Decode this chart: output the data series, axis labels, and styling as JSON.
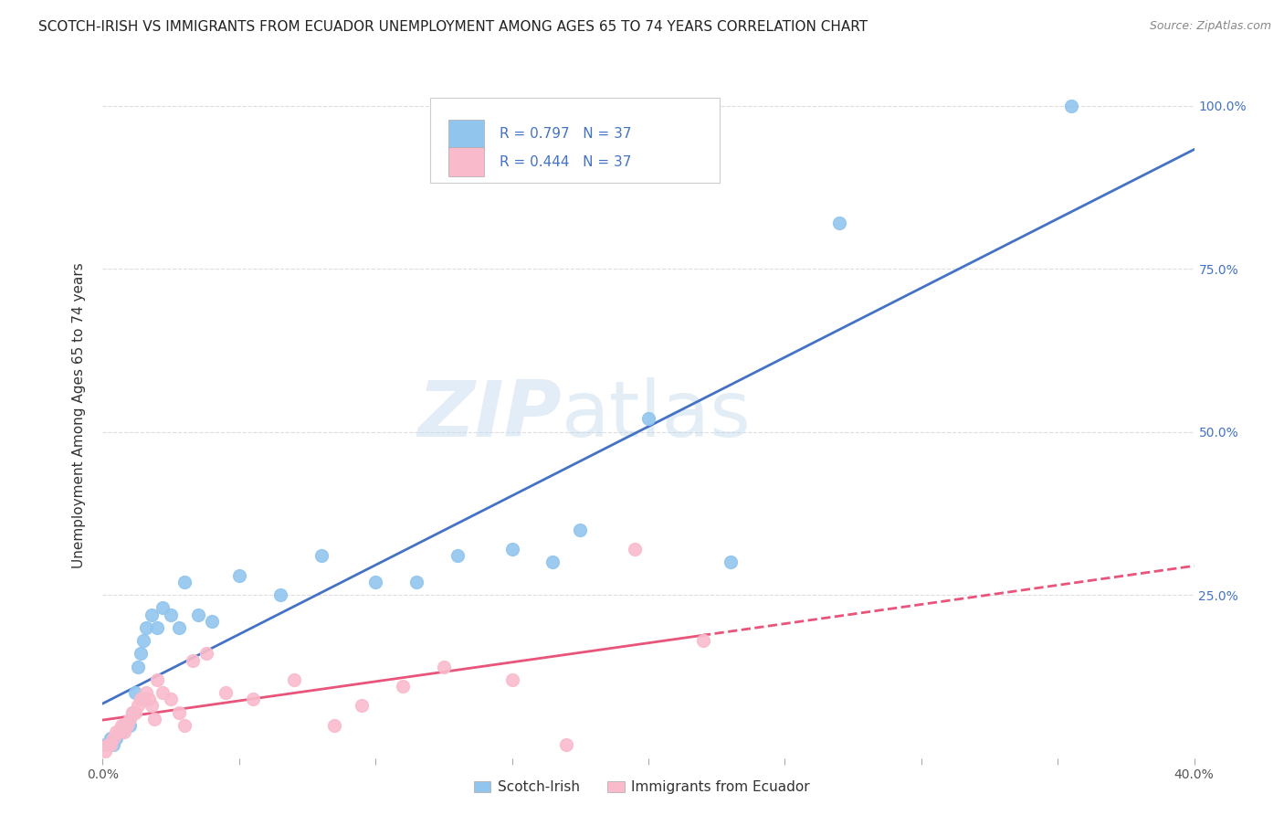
{
  "title": "SCOTCH-IRISH VS IMMIGRANTS FROM ECUADOR UNEMPLOYMENT AMONG AGES 65 TO 74 YEARS CORRELATION CHART",
  "source": "Source: ZipAtlas.com",
  "ylabel": "Unemployment Among Ages 65 to 74 years",
  "xlim": [
    0.0,
    0.4
  ],
  "ylim": [
    0.0,
    1.05
  ],
  "xtick_vals": [
    0.0,
    0.05,
    0.1,
    0.15,
    0.2,
    0.25,
    0.3,
    0.35,
    0.4
  ],
  "xticklabels": [
    "0.0%",
    "",
    "",
    "",
    "",
    "",
    "",
    "",
    "40.0%"
  ],
  "ytick_vals": [
    0.0,
    0.25,
    0.5,
    0.75,
    1.0
  ],
  "yticklabels": [
    "",
    "25.0%",
    "50.0%",
    "75.0%",
    "100.0%"
  ],
  "scotch_irish_R": 0.797,
  "scotch_irish_N": 37,
  "ecuador_R": 0.444,
  "ecuador_N": 37,
  "scotch_irish_color": "#92C5EE",
  "ecuador_color": "#F9BBCC",
  "scotch_irish_line_color": "#4472C4",
  "ecuador_line_color": "#E8547A",
  "scotch_irish_x": [
    0.001,
    0.002,
    0.003,
    0.004,
    0.005,
    0.006,
    0.007,
    0.008,
    0.009,
    0.01,
    0.011,
    0.012,
    0.013,
    0.014,
    0.015,
    0.016,
    0.018,
    0.02,
    0.022,
    0.025,
    0.028,
    0.03,
    0.035,
    0.04,
    0.05,
    0.065,
    0.08,
    0.1,
    0.115,
    0.13,
    0.15,
    0.165,
    0.175,
    0.2,
    0.23,
    0.27,
    0.355
  ],
  "scotch_irish_y": [
    0.02,
    0.02,
    0.03,
    0.02,
    0.03,
    0.04,
    0.04,
    0.05,
    0.05,
    0.05,
    0.07,
    0.1,
    0.14,
    0.16,
    0.18,
    0.2,
    0.22,
    0.2,
    0.23,
    0.22,
    0.2,
    0.27,
    0.22,
    0.21,
    0.28,
    0.25,
    0.31,
    0.27,
    0.27,
    0.31,
    0.32,
    0.3,
    0.35,
    0.52,
    0.3,
    0.82,
    1.0
  ],
  "ecuador_x": [
    0.001,
    0.002,
    0.003,
    0.004,
    0.005,
    0.006,
    0.007,
    0.008,
    0.009,
    0.01,
    0.011,
    0.012,
    0.013,
    0.014,
    0.015,
    0.016,
    0.017,
    0.018,
    0.019,
    0.02,
    0.022,
    0.025,
    0.028,
    0.03,
    0.033,
    0.038,
    0.045,
    0.055,
    0.07,
    0.085,
    0.095,
    0.11,
    0.125,
    0.15,
    0.17,
    0.195,
    0.22
  ],
  "ecuador_y": [
    0.01,
    0.02,
    0.02,
    0.03,
    0.04,
    0.04,
    0.05,
    0.04,
    0.05,
    0.06,
    0.07,
    0.07,
    0.08,
    0.09,
    0.09,
    0.1,
    0.09,
    0.08,
    0.06,
    0.12,
    0.1,
    0.09,
    0.07,
    0.05,
    0.15,
    0.16,
    0.1,
    0.09,
    0.12,
    0.05,
    0.08,
    0.11,
    0.14,
    0.12,
    0.02,
    0.32,
    0.18
  ],
  "watermark_zip": "ZIP",
  "watermark_atlas": "atlas",
  "background_color": "#FFFFFF",
  "grid_color": "#DDDDDD",
  "title_fontsize": 11,
  "axis_label_fontsize": 11,
  "tick_fontsize": 10,
  "right_tick_color": "#4472C4"
}
